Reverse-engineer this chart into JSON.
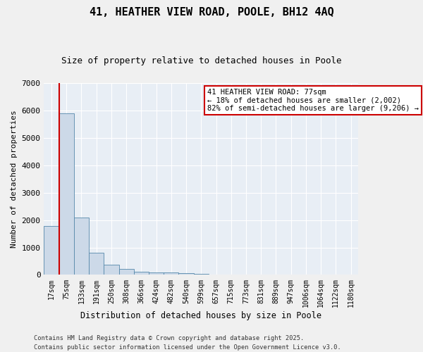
{
  "title_line1": "41, HEATHER VIEW ROAD, POOLE, BH12 4AQ",
  "title_line2": "Size of property relative to detached houses in Poole",
  "xlabel": "Distribution of detached houses by size in Poole",
  "ylabel": "Number of detached properties",
  "categories": [
    "17sqm",
    "75sqm",
    "133sqm",
    "191sqm",
    "250sqm",
    "308sqm",
    "366sqm",
    "424sqm",
    "482sqm",
    "540sqm",
    "599sqm",
    "657sqm",
    "715sqm",
    "773sqm",
    "831sqm",
    "889sqm",
    "947sqm",
    "1006sqm",
    "1064sqm",
    "1122sqm",
    "1180sqm"
  ],
  "values": [
    1780,
    5900,
    2100,
    820,
    370,
    215,
    125,
    90,
    80,
    55,
    40,
    0,
    0,
    0,
    0,
    0,
    0,
    0,
    0,
    0,
    0
  ],
  "bar_color": "#ccd9e8",
  "bar_edge_color": "#5588aa",
  "highlight_line_color": "#cc0000",
  "annotation_text": "41 HEATHER VIEW ROAD: 77sqm\n← 18% of detached houses are smaller (2,002)\n82% of semi-detached houses are larger (9,206) →",
  "annotation_box_color": "#cc0000",
  "ylim": [
    0,
    7000
  ],
  "yticks": [
    0,
    1000,
    2000,
    3000,
    4000,
    5000,
    6000,
    7000
  ],
  "background_color": "#e8eef5",
  "grid_color": "#ffffff",
  "footer_line1": "Contains HM Land Registry data © Crown copyright and database right 2025.",
  "footer_line2": "Contains public sector information licensed under the Open Government Licence v3.0."
}
